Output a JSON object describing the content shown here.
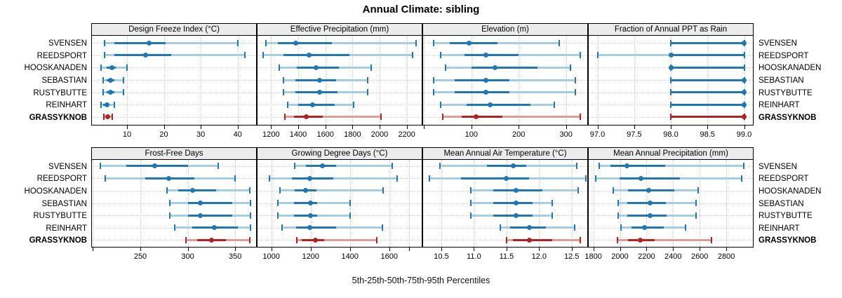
{
  "chart_data": {
    "type": "dotplot-interval",
    "title": "Annual Climate: sibling",
    "caption": "5th-25th-50th-75th-95th Percentiles",
    "percentile_levels": [
      5,
      25,
      50,
      75,
      95
    ],
    "sites": [
      "SVENSEN",
      "REEDSPORT",
      "HOOSKANADEN",
      "SEBASTIAN",
      "RUSTYBUTTE",
      "REINHART",
      "GRASSYKNOB"
    ],
    "highlight_site": "GRASSYKNOB",
    "legend_position": "none",
    "grid": "dotted",
    "colors": {
      "series": "#1f78b4",
      "series_light": "#a6cee3",
      "highlight": "#b22222",
      "highlight_light": "#de9d9a",
      "strip_bg": "#ececec",
      "gridline": "#c9c9c9",
      "border": "#000000"
    },
    "grid_layout": [
      [
        0,
        1,
        2,
        3
      ],
      [
        4,
        5,
        6,
        7
      ]
    ],
    "panels": [
      {
        "title": "Design Freeze Index (°C)",
        "xlim": [
          0.5,
          45
        ],
        "ticks": [
          10,
          20,
          30,
          40
        ],
        "tick_labels": [
          "10",
          "20",
          "30",
          "40"
        ],
        "values": [
          [
            4,
            6.5,
            16,
            20.5,
            40
          ],
          [
            4,
            6.5,
            15,
            22,
            42
          ],
          [
            3,
            4.5,
            6,
            7,
            10
          ],
          [
            3.5,
            4.5,
            5.5,
            6.5,
            9
          ],
          [
            3.5,
            4.5,
            5.5,
            6.5,
            9
          ],
          [
            3,
            3.5,
            4.5,
            5,
            6.5
          ],
          [
            3.8,
            4.2,
            4.8,
            5.3,
            6
          ]
        ]
      },
      {
        "title": "Effective Precipitation (mm)",
        "xlim": [
          1100,
          2310
        ],
        "ticks": [
          1200,
          1400,
          1600,
          1800,
          2000,
          2200
        ],
        "tick_labels": [
          "1200",
          "1400",
          "1600",
          "1800",
          "2000",
          "2200"
        ],
        "values": [
          [
            1160,
            1250,
            1380,
            1650,
            2270
          ],
          [
            1140,
            1290,
            1480,
            1780,
            2240
          ],
          [
            1260,
            1390,
            1530,
            1700,
            1940
          ],
          [
            1290,
            1380,
            1555,
            1680,
            1910
          ],
          [
            1290,
            1380,
            1555,
            1690,
            1910
          ],
          [
            1320,
            1400,
            1505,
            1670,
            1810
          ],
          [
            1300,
            1370,
            1460,
            1580,
            2010
          ]
        ]
      },
      {
        "title": "Elevation (m)",
        "xlim": [
          -2,
          345
        ],
        "ticks": [
          0,
          100,
          200,
          300
        ],
        "tick_labels": [
          "",
          "100",
          "200",
          "300"
        ],
        "values": [
          [
            20,
            55,
            95,
            155,
            285
          ],
          [
            35,
            85,
            130,
            200,
            330
          ],
          [
            45,
            100,
            150,
            240,
            310
          ],
          [
            20,
            65,
            130,
            180,
            320
          ],
          [
            20,
            65,
            130,
            180,
            320
          ],
          [
            35,
            90,
            140,
            225,
            275
          ],
          [
            40,
            80,
            110,
            165,
            330
          ]
        ]
      },
      {
        "title": "Fraction of Annual PPT as Rain",
        "xlim": [
          96.88,
          99.12
        ],
        "ticks": [
          97.0,
          97.5,
          98.0,
          98.5,
          99.0
        ],
        "tick_labels": [
          "97.0",
          "97.5",
          "98.0",
          "98.5",
          "99.0"
        ],
        "values": [
          [
            98,
            98,
            99,
            99,
            99
          ],
          [
            97,
            98,
            98,
            99,
            99
          ],
          [
            98,
            98,
            98,
            99,
            99
          ],
          [
            98,
            98,
            99,
            99,
            99
          ],
          [
            98,
            98,
            99,
            99,
            99
          ],
          [
            98,
            98,
            99,
            99,
            99
          ],
          [
            98,
            98,
            99,
            99,
            99
          ]
        ]
      },
      {
        "title": "Frost-Free Days",
        "xlim": [
          199,
          372
        ],
        "ticks": [
          200,
          250,
          300,
          350
        ],
        "tick_labels": [
          "",
          "250",
          "300",
          "350"
        ],
        "values": [
          [
            208,
            235,
            265,
            300,
            332
          ],
          [
            213,
            255,
            280,
            307,
            350
          ],
          [
            278,
            290,
            305,
            330,
            365
          ],
          [
            281,
            300,
            313,
            347,
            366
          ],
          [
            281,
            300,
            313,
            347,
            366
          ],
          [
            286,
            305,
            328,
            353,
            366
          ],
          [
            298,
            310,
            325,
            340,
            365
          ]
        ]
      },
      {
        "title": "Growing Degree Days (°C)",
        "xlim": [
          930,
          1765
        ],
        "ticks": [
          1000,
          1200,
          1400,
          1600,
          1700
        ],
        "tick_labels": [
          "1000",
          "1200",
          "1400",
          "1600",
          ""
        ],
        "values": [
          [
            1120,
            1175,
            1260,
            1330,
            1615
          ],
          [
            990,
            1105,
            1195,
            1315,
            1640
          ],
          [
            1045,
            1120,
            1175,
            1230,
            1570
          ],
          [
            1035,
            1115,
            1200,
            1235,
            1400
          ],
          [
            1035,
            1115,
            1200,
            1235,
            1400
          ],
          [
            1055,
            1125,
            1195,
            1330,
            1565
          ],
          [
            1130,
            1155,
            1225,
            1270,
            1535
          ]
        ]
      },
      {
        "title": "Mean Annual Air Temperature (°C)",
        "xlim": [
          10.22,
          12.74
        ],
        "ticks": [
          10.5,
          11.0,
          11.5,
          12.0,
          12.5
        ],
        "tick_labels": [
          "10.5",
          "11.0",
          "11.5",
          "12.0",
          "12.5"
        ],
        "values": [
          [
            10.48,
            11.2,
            11.6,
            11.8,
            12.58
          ],
          [
            10.32,
            10.8,
            11.5,
            11.85,
            12.72
          ],
          [
            10.95,
            11.3,
            11.65,
            12.05,
            12.6
          ],
          [
            10.95,
            11.3,
            11.65,
            11.9,
            12.2
          ],
          [
            10.95,
            11.3,
            11.65,
            11.9,
            12.2
          ],
          [
            11.4,
            11.55,
            11.85,
            12.1,
            12.55
          ],
          [
            11.5,
            11.6,
            11.85,
            12.2,
            12.63
          ]
        ]
      },
      {
        "title": "Mean Annual Precipitation (mm)",
        "xlim": [
          1765,
          3000
        ],
        "ticks": [
          1800,
          2000,
          2200,
          2400,
          2600,
          2800
        ],
        "tick_labels": [
          "1800",
          "2000",
          "2200",
          "2400",
          "2600",
          "2800"
        ],
        "values": [
          [
            1845,
            1930,
            2050,
            2340,
            2930
          ],
          [
            1820,
            1995,
            2160,
            2450,
            2915
          ],
          [
            1950,
            2060,
            2215,
            2410,
            2590
          ],
          [
            1985,
            2055,
            2225,
            2345,
            2570
          ],
          [
            1985,
            2055,
            2225,
            2350,
            2570
          ],
          [
            2010,
            2085,
            2185,
            2330,
            2495
          ],
          [
            1980,
            2060,
            2155,
            2260,
            2690
          ]
        ]
      }
    ]
  }
}
